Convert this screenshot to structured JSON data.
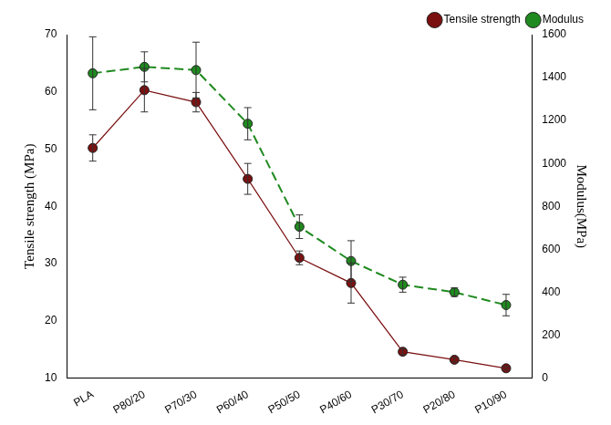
{
  "chart_data": {
    "type": "line",
    "categories": [
      "PLA",
      "P80/20",
      "P70/30",
      "P60/40",
      "P50/50",
      "P40/60",
      "P30/70",
      "P20/80",
      "P10/90"
    ],
    "series": [
      {
        "name": "Tensile strength",
        "color": "#7a1010",
        "marker": "circle",
        "line_style": "solid",
        "values": [
          50.2,
          60.3,
          58.2,
          44.8,
          31.0,
          26.6,
          14.6,
          13.2,
          11.7
        ],
        "errors": [
          2.3,
          3.8,
          1.7,
          2.7,
          1.2,
          3.5,
          0.5,
          0.4,
          0.3
        ]
      },
      {
        "name": "Modulus",
        "color": "#1f8a1f",
        "marker": "circle",
        "line_style": "dashed",
        "axis": "y2",
        "values": [
          1420,
          1450,
          1435,
          1185,
          705,
          545,
          435,
          400,
          340
        ],
        "errors": [
          170,
          70,
          130,
          75,
          55,
          95,
          35,
          20,
          50
        ]
      }
    ],
    "y_label": "Tensile strength (MPa)",
    "y2_label": "Modulus(MPa)",
    "ylim": [
      10,
      70
    ],
    "yticks": [
      10,
      20,
      30,
      40,
      50,
      60,
      70
    ],
    "y2lim": [
      0,
      1600
    ],
    "y2ticks": [
      0,
      200,
      400,
      600,
      800,
      1000,
      1200,
      1400,
      1600
    ],
    "grid": false,
    "legend": "upper right"
  }
}
